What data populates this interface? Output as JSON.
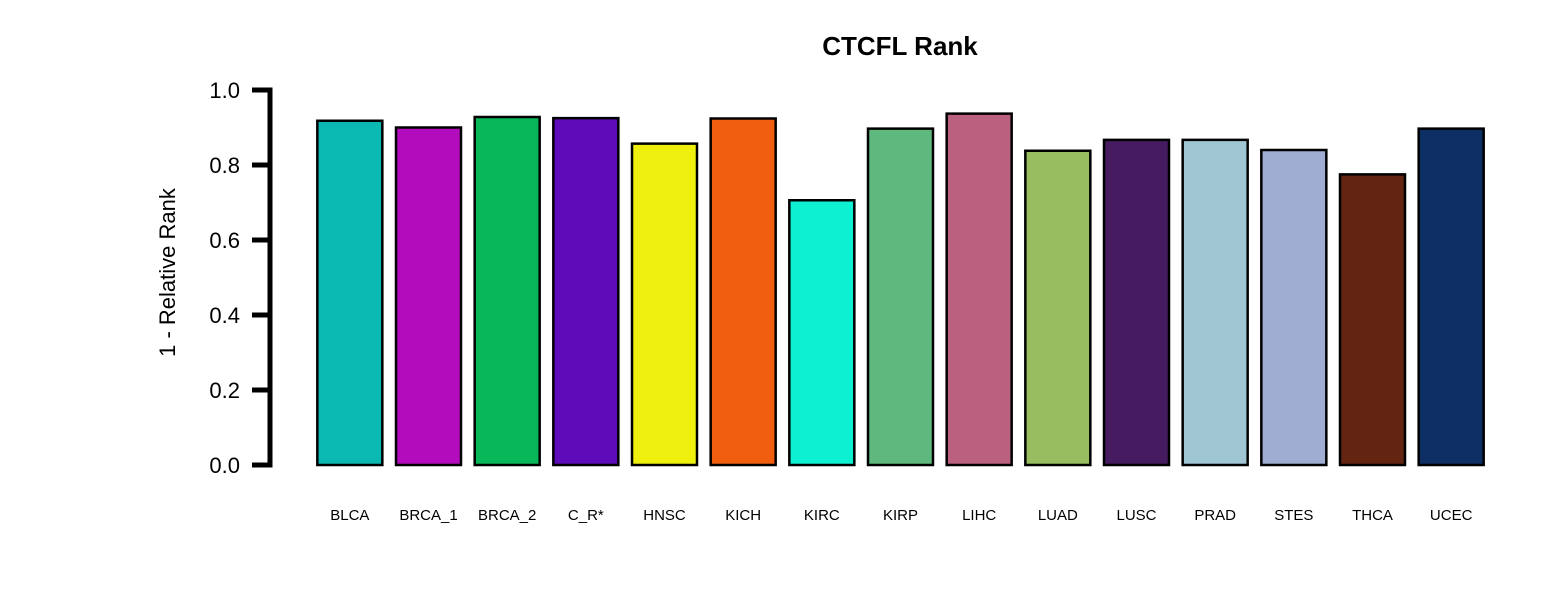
{
  "chart_data": {
    "type": "bar",
    "title": "CTCFL Rank",
    "xlabel": "",
    "ylabel": "1 - Relative Rank",
    "ylim": [
      0,
      1
    ],
    "yticks": [
      "0.0",
      "0.2",
      "0.4",
      "0.6",
      "0.8",
      "1.0"
    ],
    "ytick_values": [
      0,
      0.2,
      0.4,
      0.6,
      0.8,
      1.0
    ],
    "grid": false,
    "legend": "none",
    "categories": [
      "BLCA",
      "BRCA_1",
      "BRCA_2",
      "C_R*",
      "HNSC",
      "KICH",
      "KIRC",
      "KIRP",
      "LIHC",
      "LUAD",
      "LUSC",
      "PRAD",
      "STES",
      "THCA",
      "UCEC"
    ],
    "values": [
      0.918,
      0.9,
      0.928,
      0.925,
      0.857,
      0.924,
      0.706,
      0.897,
      0.937,
      0.838,
      0.867,
      0.867,
      0.84,
      0.775,
      0.897
    ],
    "colors": [
      "#0ab9b2",
      "#b20cbc",
      "#08b758",
      "#5e0bb9",
      "#eeef0c",
      "#f15e10",
      "#0ef0d2",
      "#5fb97e",
      "#bc607f",
      "#98bc60",
      "#461b60",
      "#a0c6d4",
      "#9eadd1",
      "#642412",
      "#0d2f64"
    ],
    "bar_outline_color": "#000000"
  }
}
